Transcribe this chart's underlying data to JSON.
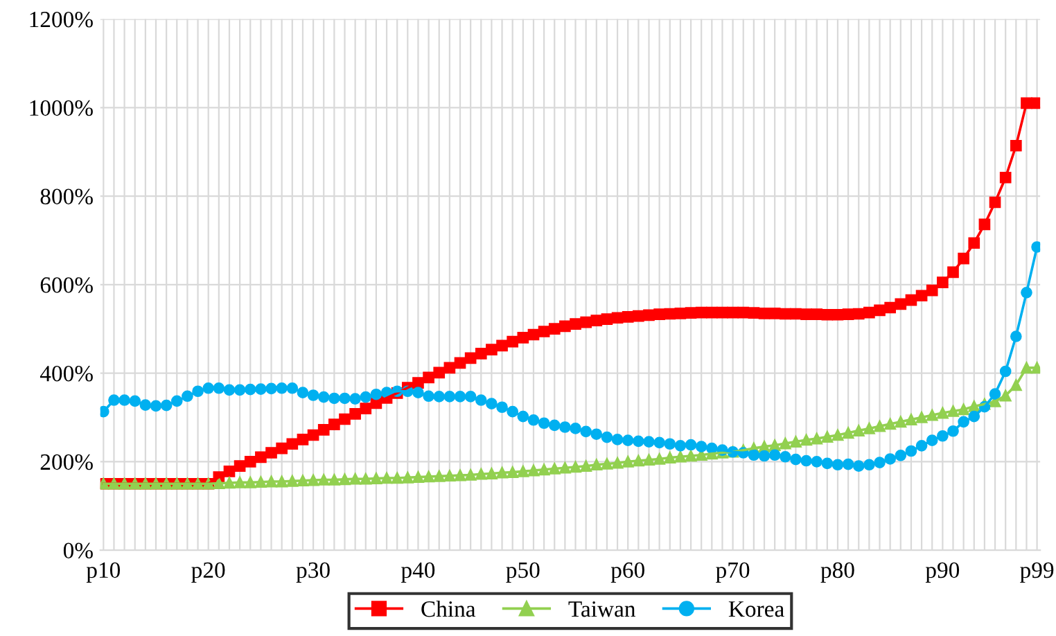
{
  "chart_data": {
    "type": "line",
    "categories": [
      "p10",
      null,
      null,
      null,
      null,
      null,
      null,
      null,
      null,
      null,
      "p20",
      null,
      null,
      null,
      null,
      null,
      null,
      null,
      null,
      null,
      "p30",
      null,
      null,
      null,
      null,
      null,
      null,
      null,
      null,
      null,
      "p40",
      null,
      null,
      null,
      null,
      null,
      null,
      null,
      null,
      null,
      "p50",
      null,
      null,
      null,
      null,
      null,
      null,
      null,
      null,
      null,
      "p60",
      null,
      null,
      null,
      null,
      null,
      null,
      null,
      null,
      null,
      "p70",
      null,
      null,
      null,
      null,
      null,
      null,
      null,
      null,
      null,
      "p80",
      null,
      null,
      null,
      null,
      null,
      null,
      null,
      null,
      null,
      "p90",
      null,
      null,
      null,
      null,
      null,
      null,
      null,
      null,
      "p99"
    ],
    "series": [
      {
        "name": "China",
        "color": "#ff0000",
        "marker": "square",
        "values": [
          150,
          150,
          150,
          150,
          150,
          150,
          150,
          150,
          150,
          150,
          150,
          165,
          178,
          190,
          200,
          210,
          220,
          230,
          240,
          250,
          260,
          272,
          284,
          296,
          308,
          320,
          332,
          344,
          355,
          367,
          378,
          390,
          401,
          412,
          423,
          434,
          444,
          453,
          462,
          471,
          480,
          487,
          494,
          500,
          506,
          511,
          515,
          519,
          522,
          525,
          527,
          529,
          531,
          533,
          534,
          535,
          536,
          537,
          537,
          537,
          537,
          537,
          536,
          535,
          535,
          534,
          534,
          533,
          533,
          532,
          532,
          533,
          534,
          537,
          542,
          548,
          556,
          565,
          575,
          587,
          605,
          628,
          659,
          694,
          736,
          786,
          842,
          914,
          1010,
          1010
        ]
      },
      {
        "name": "Taiwan",
        "color": "#92d050",
        "marker": "triangle",
        "values": [
          150,
          150,
          150,
          150,
          150,
          150,
          150,
          150,
          150,
          150,
          150,
          151,
          152,
          153,
          153,
          154,
          155,
          155,
          156,
          157,
          158,
          159,
          159,
          160,
          161,
          161,
          162,
          163,
          163,
          164,
          165,
          166,
          167,
          168,
          169,
          170,
          172,
          173,
          175,
          176,
          178,
          180,
          182,
          184,
          186,
          188,
          190,
          193,
          195,
          197,
          200,
          202,
          204,
          206,
          209,
          211,
          213,
          215,
          218,
          220,
          222,
          226,
          230,
          234,
          237,
          241,
          245,
          249,
          252,
          256,
          260,
          265,
          270,
          275,
          280,
          285,
          290,
          295,
          300,
          305,
          310,
          314,
          318,
          325,
          330,
          336,
          349,
          373,
          412,
          412
        ]
      },
      {
        "name": "Korea",
        "color": "#00b0f0",
        "marker": "circle",
        "values": [
          313,
          339,
          339,
          337,
          328,
          326,
          327,
          337,
          348,
          359,
          366,
          366,
          362,
          362,
          363,
          364,
          365,
          366,
          366,
          356,
          350,
          346,
          343,
          343,
          342,
          346,
          352,
          356,
          359,
          359,
          356,
          348,
          347,
          347,
          347,
          347,
          339,
          331,
          323,
          313,
          302,
          294,
          287,
          282,
          278,
          275,
          268,
          262,
          255,
          250,
          248,
          246,
          245,
          243,
          240,
          236,
          238,
          234,
          230,
          226,
          222,
          220,
          215,
          213,
          215,
          211,
          205,
          202,
          200,
          196,
          193,
          194,
          190,
          193,
          198,
          206,
          214,
          224,
          236,
          248,
          258,
          269,
          290,
          302,
          324,
          353,
          404,
          483,
          582,
          685
        ]
      }
    ],
    "ylim": [
      0,
      1200
    ],
    "yticks": [
      {
        "value": 0,
        "label": "0%"
      },
      {
        "value": 200,
        "label": "200%"
      },
      {
        "value": 400,
        "label": "400%"
      },
      {
        "value": 600,
        "label": "600%"
      },
      {
        "value": 800,
        "label": "800%"
      },
      {
        "value": 1000,
        "label": "1000%"
      },
      {
        "value": 1200,
        "label": "1200%"
      }
    ],
    "grid": true,
    "legend": "bottom",
    "line_style": "solid"
  }
}
